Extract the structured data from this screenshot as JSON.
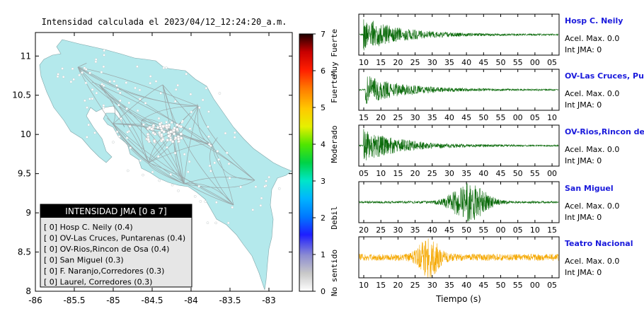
{
  "map": {
    "title": "Intensidad calculada el 2023/04/12_12:24:20_a.m.",
    "land_color": "#b4e9ec",
    "x_ticks": [
      "-86",
      "-85.5",
      "-85",
      "-84.5",
      "-84",
      "-83.5",
      "-83"
    ],
    "x_tick_values": [
      -86,
      -85.5,
      -85,
      -84.5,
      -84,
      -83.5,
      -83
    ],
    "y_ticks": [
      "11",
      "10.5",
      "10",
      "9.5",
      "9",
      "8.5",
      "8"
    ],
    "y_tick_values": [
      11,
      10.5,
      10,
      9.5,
      9,
      8.5,
      8
    ],
    "xlim": [
      -86,
      -82.7
    ],
    "ylim": [
      8,
      11.3
    ]
  },
  "colorbar": {
    "ticks": [
      "0",
      "1",
      "2",
      "3",
      "4",
      "5",
      "6",
      "7"
    ],
    "labels": [
      "No sentido",
      "Debil",
      "Moderado",
      "Fuerte",
      "Muy Fuerte"
    ],
    "range": [
      0,
      7
    ]
  },
  "legend": {
    "title": "INTENSIDAD JMA [0 a 7]",
    "items": [
      "[ 0]  Hosp C. Neily (0.4)",
      "[ 0]  OV-Las Cruces, Puntarenas (0.4)",
      "[ 0]  OV-Rios,Rincon de Osa (0.4)",
      "[ 0]  San Miguel (0.3)",
      "[ 0]  F. Naranjo,Corredores (0.3)",
      "[ 0]  Laurel, Corredores (0.3)"
    ]
  },
  "stations": [
    {
      "name": "Hosp C. Neily",
      "accel": "Acel. Max. 0.0",
      "jma": "Int JMA: 0",
      "color": "#0b6b0b",
      "ticks": [
        "10",
        "15",
        "20",
        "25",
        "30",
        "35",
        "40",
        "45",
        "50",
        "55",
        "00",
        "05"
      ]
    },
    {
      "name": "OV-Las Cruces, Puntarenas",
      "accel": "Acel. Max. 0.0",
      "jma": "Int JMA: 0",
      "color": "#0b6b0b",
      "ticks": [
        "15",
        "20",
        "25",
        "30",
        "35",
        "40",
        "45",
        "50",
        "55",
        "00",
        "05",
        "10"
      ]
    },
    {
      "name": "OV-Rios,Rincon de Osa",
      "accel": "Acel. Max. 0.0",
      "jma": "Int JMA: 0",
      "color": "#0b6b0b",
      "ticks": [
        "05",
        "10",
        "15",
        "20",
        "25",
        "30",
        "35",
        "40",
        "45",
        "50",
        "55",
        "00"
      ]
    },
    {
      "name": "San Miguel",
      "accel": "Acel. Max. 0.0",
      "jma": "Int JMA: 0",
      "color": "#0b6b0b",
      "ticks": [
        "20",
        "25",
        "30",
        "35",
        "40",
        "45",
        "50",
        "55",
        "00",
        "05",
        "10",
        "15"
      ]
    },
    {
      "name": "Teatro Nacional",
      "accel": "Acel. Max. 0.0",
      "jma": "Int JMA: 0",
      "color": "#f5a800",
      "ticks": [
        "10",
        "15",
        "20",
        "25",
        "30",
        "35",
        "40",
        "45",
        "50",
        "55",
        "00",
        "05"
      ]
    }
  ],
  "xlabel": "Tiempo (s)",
  "station_name_color": "#1a1adc",
  "chart_data": [
    {
      "type": "heatmap",
      "title": "Intensidad calculada el 2023/04/12_12:24:20_a.m.",
      "xlim": [
        -86,
        -82.7
      ],
      "ylim": [
        8,
        11.3
      ],
      "colorbar_range": [
        0,
        7
      ],
      "legend": [
        "Hosp C. Neily (0.4)",
        "OV-Las Cruces, Puntarenas (0.4)",
        "OV-Rios,Rincon de Osa (0.4)",
        "San Miguel (0.3)",
        "F. Naranjo,Corredores (0.3)",
        "Laurel, Corredores (0.3)"
      ]
    },
    {
      "type": "line",
      "xlabel": "Tiempo (s)",
      "series": [
        {
          "name": "Hosp C. Neily",
          "shape": "onset-decay",
          "onset": 0.02,
          "peak": 0.9
        },
        {
          "name": "OV-Las Cruces, Puntarenas",
          "shape": "onset-decay",
          "onset": 0.03,
          "peak": 0.75
        },
        {
          "name": "OV-Rios,Rincon de Osa",
          "shape": "onset-decay",
          "onset": 0.02,
          "peak": 0.85
        },
        {
          "name": "San Miguel",
          "shape": "burst",
          "onset": 0.55,
          "peak": 0.95
        },
        {
          "name": "Teatro Nacional",
          "shape": "burst",
          "onset": 0.35,
          "peak": 0.9
        }
      ]
    }
  ]
}
